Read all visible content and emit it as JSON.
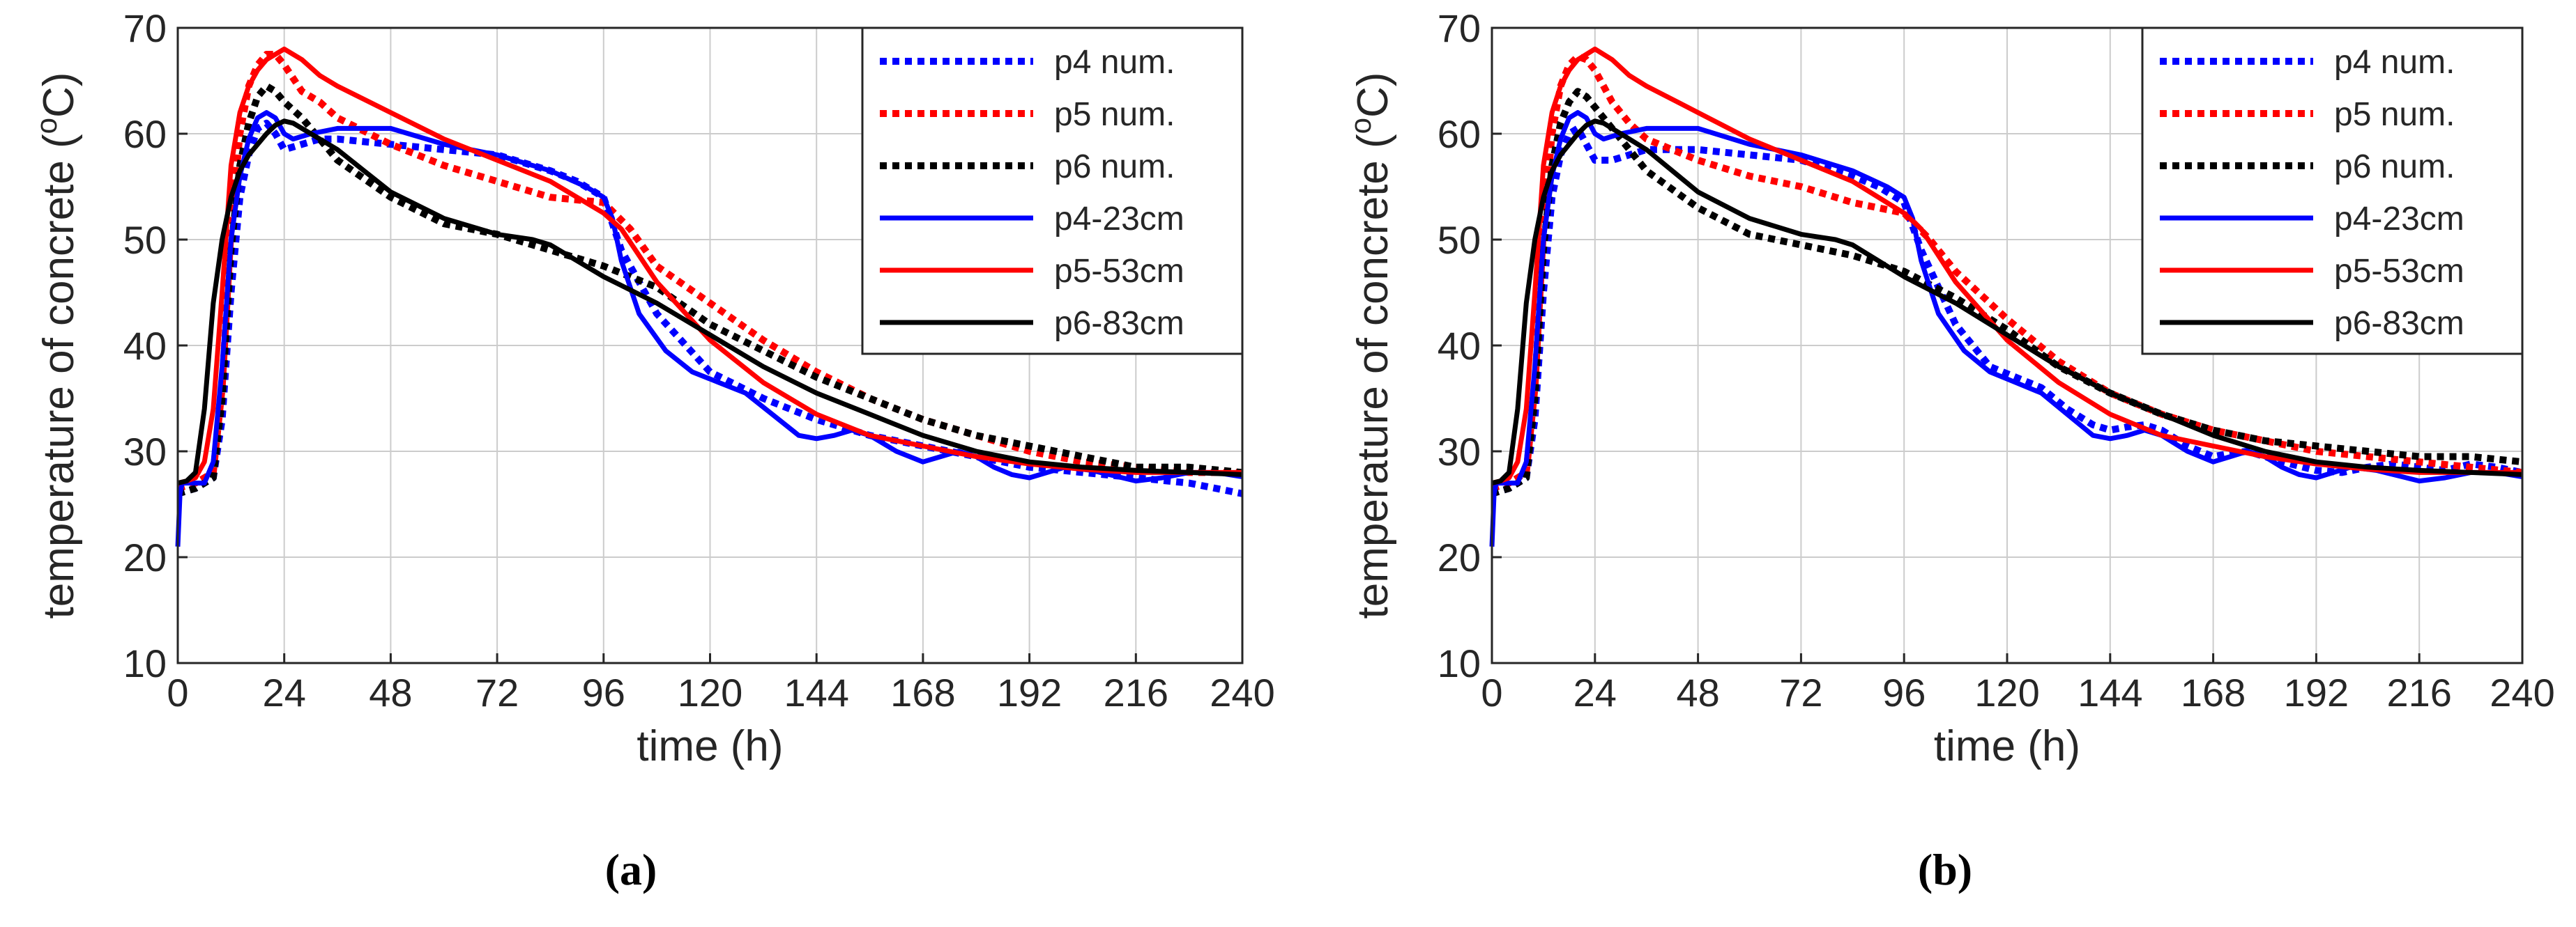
{
  "colors": {
    "blue": "#0000ff",
    "red": "#ff0000",
    "black": "#000000",
    "grid": "#cccccc",
    "axis": "#262626"
  },
  "chart_data": [
    {
      "type": "line",
      "panel_label": "(a)",
      "xlabel": "time (h)",
      "ylabel_text": "temperature of concrete (",
      "ylabel_sup": "o",
      "ylabel_unit": "C)",
      "xlim": [
        0,
        240
      ],
      "ylim": [
        10,
        70
      ],
      "xticks": [
        "0",
        "24",
        "48",
        "72",
        "96",
        "120",
        "144",
        "168",
        "192",
        "216",
        "240"
      ],
      "yticks": [
        "10",
        "20",
        "30",
        "40",
        "50",
        "60",
        "70"
      ],
      "grid": true,
      "legend_position": "top-right",
      "series": [
        {
          "name": "p4 num.",
          "color": "blue",
          "style": "dotted",
          "x": [
            0,
            4,
            8,
            10,
            12,
            14,
            16,
            18,
            20,
            22,
            24,
            28,
            32,
            36,
            48,
            60,
            72,
            84,
            90,
            96,
            100,
            108,
            120,
            132,
            144,
            156,
            168,
            180,
            192,
            204,
            216,
            228,
            240
          ],
          "y": [
            26,
            26.5,
            27.5,
            33,
            45,
            54,
            58,
            60.5,
            61,
            60,
            58.5,
            59,
            59.5,
            59.5,
            59,
            58.5,
            58,
            56.5,
            55.5,
            54,
            49,
            43,
            37.5,
            35,
            33,
            31.5,
            30.5,
            29.5,
            28.5,
            28,
            27.5,
            27,
            26
          ]
        },
        {
          "name": "p5 num.",
          "color": "red",
          "style": "dotted",
          "x": [
            0,
            4,
            8,
            10,
            12,
            14,
            16,
            18,
            20,
            22,
            24,
            28,
            32,
            36,
            48,
            60,
            72,
            84,
            96,
            102,
            108,
            120,
            132,
            144,
            156,
            168,
            180,
            192,
            204,
            216,
            228,
            240
          ],
          "y": [
            26.5,
            27,
            28,
            36,
            51,
            60,
            64.5,
            66.5,
            67.5,
            67.5,
            66.5,
            64,
            63,
            61.5,
            59,
            57,
            55.5,
            54,
            53.5,
            51,
            47.5,
            44,
            40.5,
            37.5,
            35,
            33,
            31.5,
            30,
            29,
            28.5,
            28,
            28
          ]
        },
        {
          "name": "p6 num.",
          "color": "black",
          "style": "dotted",
          "x": [
            0,
            4,
            8,
            10,
            12,
            14,
            16,
            18,
            20,
            22,
            24,
            28,
            32,
            36,
            48,
            60,
            72,
            84,
            96,
            108,
            120,
            132,
            144,
            156,
            168,
            180,
            192,
            204,
            216,
            228,
            240
          ],
          "y": [
            26,
            26.5,
            27.5,
            35,
            49,
            57,
            61,
            63.5,
            64.5,
            64,
            63,
            61.5,
            59.5,
            57.5,
            54,
            51.5,
            50.5,
            49,
            47.5,
            45.5,
            42,
            39.5,
            37,
            35,
            33,
            31.5,
            30.5,
            29.5,
            28.5,
            28.5,
            28
          ]
        },
        {
          "name": "p4-23cm",
          "color": "blue",
          "style": "solid",
          "x": [
            0,
            0.5,
            1,
            3,
            6,
            8,
            10,
            12,
            14,
            16,
            18,
            20,
            22,
            24,
            26,
            30,
            36,
            42,
            48,
            60,
            72,
            84,
            92,
            96,
            98,
            100,
            104,
            110,
            116,
            122,
            128,
            134,
            140,
            144,
            148,
            152,
            156,
            162,
            168,
            172,
            176,
            180,
            184,
            188,
            192,
            196,
            200,
            206,
            212,
            216,
            222,
            228,
            234,
            240
          ],
          "y": [
            21,
            26,
            27,
            27,
            27,
            29,
            38,
            50,
            56,
            59.5,
            61.5,
            62,
            61.5,
            60,
            59.5,
            60,
            60.5,
            60.5,
            60.5,
            59,
            58,
            56.5,
            55,
            54,
            52,
            48,
            43,
            39.5,
            37.5,
            36.5,
            35.5,
            33.5,
            31.5,
            31.2,
            31.5,
            32,
            31.5,
            30,
            29,
            29.5,
            30,
            29.5,
            28.5,
            27.8,
            27.5,
            28,
            28.5,
            28.2,
            27.6,
            27.2,
            27.5,
            28,
            28,
            27.6
          ]
        },
        {
          "name": "p5-53cm",
          "color": "red",
          "style": "solid",
          "x": [
            0,
            2,
            4,
            6,
            8,
            10,
            12,
            14,
            16,
            18,
            20,
            22,
            24,
            26,
            28,
            32,
            36,
            48,
            60,
            72,
            84,
            96,
            100,
            108,
            120,
            132,
            144,
            156,
            168,
            180,
            192,
            204,
            216,
            228,
            240
          ],
          "y": [
            27,
            27.2,
            27.5,
            29,
            34,
            45,
            57,
            62,
            64.5,
            66,
            67,
            67.5,
            68,
            67.5,
            67,
            65.5,
            64.5,
            62,
            59.5,
            57.5,
            55.5,
            52.5,
            51,
            46,
            40.5,
            36.5,
            33.5,
            31.5,
            30.5,
            29.5,
            28.8,
            28.3,
            28,
            28,
            28
          ]
        },
        {
          "name": "p6-83cm",
          "color": "black",
          "style": "solid",
          "x": [
            0,
            2,
            4,
            6,
            8,
            10,
            12,
            14,
            16,
            18,
            20,
            22,
            24,
            26,
            30,
            36,
            42,
            48,
            60,
            72,
            80,
            84,
            90,
            96,
            108,
            120,
            132,
            144,
            156,
            168,
            180,
            192,
            204,
            216,
            228,
            240
          ],
          "y": [
            27,
            27.2,
            28,
            34,
            44,
            50,
            54,
            56.5,
            58,
            59,
            60,
            60.8,
            61.2,
            61,
            60,
            58.5,
            56.5,
            54.5,
            52,
            50.5,
            50,
            49.5,
            48,
            46.5,
            44,
            41,
            38,
            35.5,
            33.5,
            31.5,
            30,
            29,
            28.5,
            28.2,
            28,
            27.8
          ]
        }
      ]
    },
    {
      "type": "line",
      "panel_label": "(b)",
      "xlabel": "time (h)",
      "ylabel_text": "temperature of concrete (",
      "ylabel_sup": "o",
      "ylabel_unit": "C)",
      "xlim": [
        0,
        240
      ],
      "ylim": [
        10,
        70
      ],
      "xticks": [
        "0",
        "24",
        "48",
        "72",
        "96",
        "120",
        "144",
        "168",
        "192",
        "216",
        "240"
      ],
      "yticks": [
        "10",
        "20",
        "30",
        "40",
        "50",
        "60",
        "70"
      ],
      "grid": true,
      "legend_position": "top-right",
      "series": [
        {
          "name": "p4 num.",
          "color": "blue",
          "style": "dotted",
          "x": [
            0,
            4,
            8,
            10,
            12,
            14,
            16,
            18,
            20,
            22,
            24,
            28,
            32,
            36,
            48,
            60,
            72,
            84,
            90,
            96,
            100,
            108,
            116,
            122,
            128,
            134,
            140,
            144,
            148,
            152,
            156,
            162,
            168,
            172,
            176,
            180,
            186,
            192,
            198,
            204,
            210,
            216,
            222,
            228,
            234,
            240
          ],
          "y": [
            26,
            26.5,
            27.5,
            33,
            45,
            54,
            58,
            60,
            60.5,
            59,
            57.5,
            57.5,
            58,
            58.5,
            58.5,
            58,
            57.5,
            56,
            55,
            53.5,
            49,
            42,
            38,
            37,
            36,
            34,
            32.5,
            32,
            32.3,
            32.5,
            32,
            30.5,
            29.5,
            29.8,
            30,
            29.5,
            28.8,
            28.2,
            28,
            28.5,
            28.8,
            28.5,
            28.2,
            28.8,
            28.5,
            28
          ]
        },
        {
          "name": "p5 num.",
          "color": "red",
          "style": "dotted",
          "x": [
            0,
            4,
            8,
            10,
            12,
            14,
            16,
            18,
            20,
            22,
            24,
            28,
            32,
            36,
            48,
            60,
            72,
            84,
            96,
            102,
            108,
            120,
            132,
            144,
            156,
            168,
            180,
            192,
            204,
            216,
            228,
            240
          ],
          "y": [
            26.5,
            27,
            28,
            36,
            51,
            60,
            64.5,
            66.5,
            67.3,
            67,
            66,
            63,
            61,
            59.5,
            57.5,
            56,
            55,
            53.5,
            52.5,
            50,
            47,
            42.5,
            38.5,
            35.5,
            33.5,
            32,
            31,
            30,
            29.5,
            29,
            28.5,
            28
          ]
        },
        {
          "name": "p6 num.",
          "color": "black",
          "style": "dotted",
          "x": [
            0,
            4,
            8,
            10,
            12,
            14,
            16,
            18,
            20,
            22,
            24,
            28,
            32,
            36,
            48,
            60,
            72,
            84,
            96,
            108,
            120,
            132,
            144,
            156,
            168,
            180,
            192,
            204,
            216,
            228,
            240
          ],
          "y": [
            26,
            26.5,
            27.5,
            35,
            49,
            57,
            61,
            63,
            64,
            63.5,
            62.5,
            60.5,
            58.5,
            56.5,
            53,
            50.5,
            49.5,
            48.5,
            47,
            44.5,
            41.5,
            38,
            35.5,
            33.5,
            32,
            31,
            30.5,
            30,
            29.5,
            29.5,
            29
          ]
        },
        {
          "name": "p4-23cm",
          "color": "blue",
          "style": "solid",
          "x": [
            0,
            0.5,
            1,
            3,
            6,
            8,
            10,
            12,
            14,
            16,
            18,
            20,
            22,
            24,
            26,
            30,
            36,
            42,
            48,
            60,
            72,
            84,
            92,
            96,
            98,
            100,
            104,
            110,
            116,
            122,
            128,
            134,
            140,
            144,
            148,
            152,
            156,
            162,
            168,
            172,
            176,
            180,
            184,
            188,
            192,
            196,
            200,
            206,
            212,
            216,
            222,
            228,
            234,
            240
          ],
          "y": [
            21,
            26,
            27,
            27,
            27,
            29,
            38,
            50,
            56,
            59.5,
            61.5,
            62,
            61.5,
            60,
            59.5,
            60,
            60.5,
            60.5,
            60.5,
            59,
            58,
            56.5,
            55,
            54,
            52,
            48,
            43,
            39.5,
            37.5,
            36.5,
            35.5,
            33.5,
            31.5,
            31.2,
            31.5,
            32,
            31.5,
            30,
            29,
            29.5,
            30,
            29.5,
            28.5,
            27.8,
            27.5,
            28,
            28.5,
            28.2,
            27.6,
            27.2,
            27.5,
            28,
            28,
            27.6
          ]
        },
        {
          "name": "p5-53cm",
          "color": "red",
          "style": "solid",
          "x": [
            0,
            2,
            4,
            6,
            8,
            10,
            12,
            14,
            16,
            18,
            20,
            22,
            24,
            26,
            28,
            32,
            36,
            48,
            60,
            72,
            84,
            96,
            100,
            108,
            120,
            132,
            144,
            156,
            168,
            180,
            192,
            204,
            216,
            228,
            240
          ],
          "y": [
            27,
            27.2,
            27.5,
            29,
            34,
            45,
            57,
            62,
            64.5,
            66,
            67,
            67.5,
            68,
            67.5,
            67,
            65.5,
            64.5,
            62,
            59.5,
            57.5,
            55.5,
            52.5,
            51,
            46,
            40.5,
            36.5,
            33.5,
            31.5,
            30.5,
            29.5,
            28.8,
            28.3,
            28,
            28,
            28
          ]
        },
        {
          "name": "p6-83cm",
          "color": "black",
          "style": "solid",
          "x": [
            0,
            2,
            4,
            6,
            8,
            10,
            12,
            14,
            16,
            18,
            20,
            22,
            24,
            26,
            30,
            36,
            42,
            48,
            60,
            72,
            80,
            84,
            90,
            96,
            108,
            120,
            132,
            144,
            156,
            168,
            180,
            192,
            204,
            216,
            228,
            240
          ],
          "y": [
            27,
            27.2,
            28,
            34,
            44,
            50,
            54,
            56.5,
            58,
            59,
            60,
            60.8,
            61.2,
            61,
            60,
            58.5,
            56.5,
            54.5,
            52,
            50.5,
            50,
            49.5,
            48,
            46.5,
            44,
            41,
            38,
            35.5,
            33.5,
            31.5,
            30,
            29,
            28.5,
            28.2,
            28,
            27.8
          ]
        }
      ]
    }
  ]
}
